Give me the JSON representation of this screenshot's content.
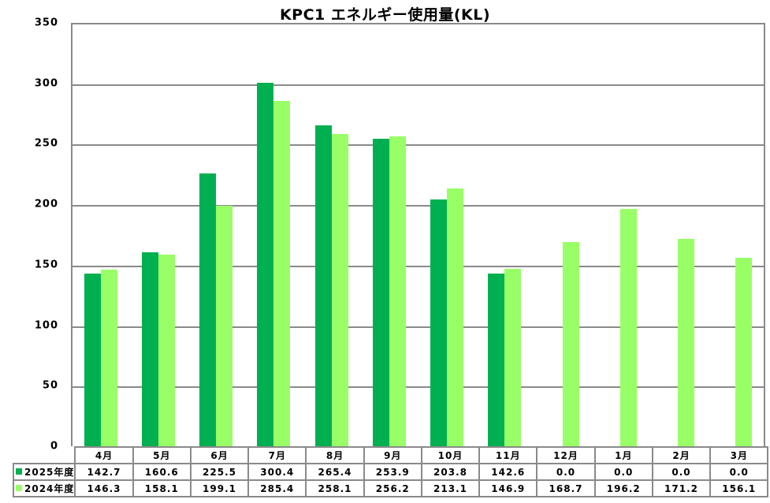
{
  "chart_data": {
    "type": "bar",
    "title": "KPC1 エネルギー使用量(KL)",
    "xlabel": "",
    "ylabel": "",
    "ylim": [
      0,
      350
    ],
    "yticks": [
      0,
      50,
      100,
      150,
      200,
      250,
      300,
      350
    ],
    "grid": true,
    "legend_position": "data-table",
    "categories": [
      "4月",
      "5月",
      "6月",
      "7月",
      "8月",
      "9月",
      "10月",
      "11月",
      "12月",
      "1月",
      "2月",
      "3月"
    ],
    "series": [
      {
        "name": "2025年度",
        "color": "#00b050",
        "values": [
          142.7,
          160.6,
          225.5,
          300.4,
          265.4,
          253.9,
          203.8,
          142.6,
          0.0,
          0.0,
          0.0,
          0.0
        ]
      },
      {
        "name": "2024年度",
        "color": "#99ff66",
        "values": [
          146.3,
          158.1,
          199.1,
          285.4,
          258.1,
          256.2,
          213.1,
          146.9,
          168.7,
          196.2,
          171.2,
          156.1
        ]
      }
    ]
  },
  "table": {
    "rows": [
      {
        "label": "2025年度",
        "cells": [
          "142.7",
          "160.6",
          "225.5",
          "300.4",
          "265.4",
          "253.9",
          "203.8",
          "142.6",
          "0.0",
          "0.0",
          "0.0",
          "0.0"
        ]
      },
      {
        "label": "2024年度",
        "cells": [
          "146.3",
          "158.1",
          "199.1",
          "285.4",
          "258.1",
          "256.2",
          "213.1",
          "146.9",
          "168.7",
          "196.2",
          "171.2",
          "156.1"
        ]
      }
    ]
  }
}
